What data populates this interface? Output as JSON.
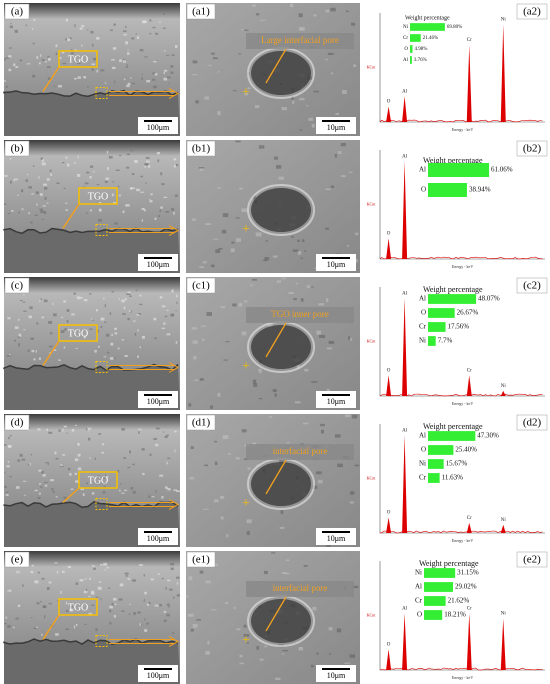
{
  "rows": [
    {
      "sem": {
        "label": "(a)",
        "annotation": "TGO",
        "scale": "100μm"
      },
      "detail": {
        "label": "(a1)",
        "annotation": "Large interfacial pore",
        "scale": "10μm"
      },
      "eds": {
        "label": "(a2)",
        "legend_title": "Weight percentage",
        "x_title": "Energy - keV",
        "y_title": "KCnt",
        "peaks": [
          "O",
          "Al",
          "Cr",
          "Ni"
        ],
        "elements": [
          {
            "name": "Ni",
            "value": 69.8,
            "label": "69.80%"
          },
          {
            "name": "Cr",
            "value": 21.46,
            "label": "21.46%"
          },
          {
            "name": "O",
            "value": 4.98,
            "label": "4.98%"
          },
          {
            "name": "Al",
            "value": 3.76,
            "label": "3.76%"
          }
        ]
      }
    },
    {
      "sem": {
        "label": "(b)",
        "annotation": "TGO",
        "scale": "100μm"
      },
      "detail": {
        "label": "(b1)",
        "scale": "10μm"
      },
      "eds": {
        "label": "(b2)",
        "legend_title": "Weight percentage",
        "x_title": "Energy - keV",
        "y_title": "KCnt",
        "peaks": [
          "O",
          "Al"
        ],
        "elements": [
          {
            "name": "Al",
            "value": 61.06,
            "label": "61.06%"
          },
          {
            "name": "O",
            "value": 38.94,
            "label": "38.94%"
          }
        ]
      }
    },
    {
      "sem": {
        "label": "(c)",
        "annotation": "TGO",
        "scale": "100μm"
      },
      "detail": {
        "label": "(c1)",
        "annotation": "TGO inner pore",
        "scale": "10μm"
      },
      "eds": {
        "label": "(c2)",
        "legend_title": "Weight percentage",
        "x_title": "Energy - keV",
        "y_title": "KCnt",
        "peaks": [
          "O",
          "Al",
          "Cr",
          "Ni"
        ],
        "elements": [
          {
            "name": "Al",
            "value": 48.07,
            "label": "48.07%"
          },
          {
            "name": "O",
            "value": 26.67,
            "label": "26.67%"
          },
          {
            "name": "Cr",
            "value": 17.56,
            "label": "17.56%"
          },
          {
            "name": "Ni",
            "value": 7.7,
            "label": "7.7%"
          }
        ]
      }
    },
    {
      "sem": {
        "label": "(d)",
        "annotation": "TGO",
        "scale": "100μm"
      },
      "detail": {
        "label": "(d1)",
        "annotation": "interfacial pore",
        "scale": "10μm"
      },
      "eds": {
        "label": "(d2)",
        "legend_title": "Weight percentage",
        "x_title": "Energy - keV",
        "y_title": "KCnt",
        "peaks": [
          "O",
          "Al",
          "Cr",
          "Ni"
        ],
        "elements": [
          {
            "name": "Al",
            "value": 47.3,
            "label": "47.30%"
          },
          {
            "name": "O",
            "value": 25.4,
            "label": "25.40%"
          },
          {
            "name": "Ni",
            "value": 15.67,
            "label": "15.67%"
          },
          {
            "name": "Cr",
            "value": 11.63,
            "label": "11.63%"
          }
        ]
      }
    },
    {
      "sem": {
        "label": "(e)",
        "annotation": "TGO",
        "scale": "100μm"
      },
      "detail": {
        "label": "(e1)",
        "annotation": "interfacial pore",
        "scale": "10μm"
      },
      "eds": {
        "label": "(e2)",
        "legend_title": "Weight percentage",
        "x_title": "Energy - keV",
        "y_title": "KCnt",
        "peaks": [
          "O",
          "Al",
          "Cr",
          "Ni"
        ],
        "elements": [
          {
            "name": "Ni",
            "value": 31.15,
            "label": "31.15%"
          },
          {
            "name": "Al",
            "value": 29.02,
            "label": "29.02%"
          },
          {
            "name": "Cr",
            "value": 21.62,
            "label": "21.62%"
          },
          {
            "name": "O",
            "value": 18.21,
            "label": "18.21%"
          }
        ]
      }
    }
  ]
}
